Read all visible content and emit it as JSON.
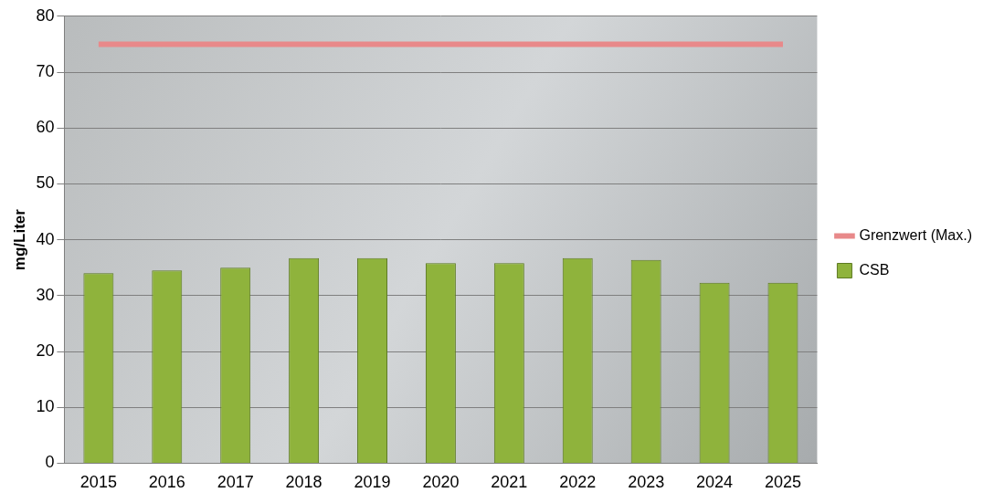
{
  "chart_data": {
    "type": "bar",
    "y_label": "mg/Liter",
    "categories": [
      "2015",
      "2016",
      "2017",
      "2018",
      "2019",
      "2020",
      "2021",
      "2022",
      "2023",
      "2024",
      "2025"
    ],
    "series": [
      {
        "name": "CSB",
        "type": "bar",
        "color": "#8fb33c",
        "values": [
          34,
          34.5,
          35,
          36.7,
          36.7,
          35.8,
          35.8,
          36.7,
          36.4,
          32.3,
          32.3
        ]
      },
      {
        "name": "Grenzwert (Max.)",
        "type": "line",
        "color": "#e8898a",
        "values": [
          75,
          75,
          75,
          75,
          75,
          75,
          75,
          75,
          75,
          75,
          75
        ]
      }
    ],
    "ylim": [
      0,
      80
    ],
    "yticks": [
      0,
      10,
      20,
      30,
      40,
      50,
      60,
      70,
      80
    ],
    "grid": true,
    "legend": "right"
  }
}
